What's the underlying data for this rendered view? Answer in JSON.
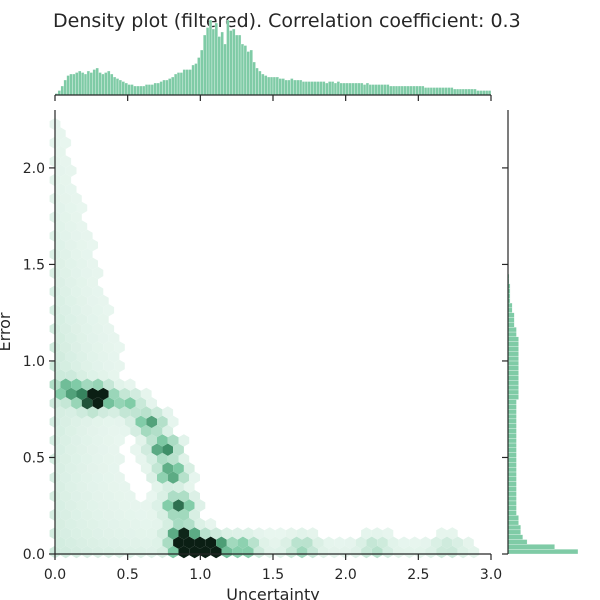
{
  "chart_data": {
    "type": "heatmap",
    "subtype": "hexbin-jointplot",
    "title": "Density plot (filtered). Correlation coefficient: 0.3",
    "xlabel": "Uncertainty",
    "ylabel": "Error",
    "xlim": [
      0,
      3.0
    ],
    "ylim": [
      0,
      2.3
    ],
    "x_ticks": [
      "0.0",
      "0.5",
      "1.0",
      "1.5",
      "2.0",
      "2.5",
      "3.0"
    ],
    "y_ticks": [
      "0.0",
      "0.5",
      "1.0",
      "1.5",
      "2.0"
    ],
    "correlation_coefficient": 0.3,
    "colors": {
      "marginal": "#7fcba6",
      "marginal_edge": "#5fb890",
      "dense": "#0b1f14",
      "light": "#e6f4ee"
    },
    "marginal_x": {
      "bin_width": 0.02,
      "start": 0.0,
      "counts": [
        1,
        3,
        6,
        10,
        13,
        14,
        14,
        15,
        16,
        15,
        14,
        16,
        15,
        17,
        18,
        15,
        14,
        15,
        16,
        14,
        12,
        11,
        10,
        9,
        8,
        7,
        7,
        6,
        6,
        6,
        6,
        7,
        7,
        7,
        8,
        8,
        9,
        10,
        10,
        11,
        12,
        14,
        15,
        15,
        17,
        17,
        17,
        20,
        21,
        25,
        30,
        40,
        45,
        50,
        44,
        48,
        39,
        42,
        34,
        50,
        43,
        44,
        40,
        40,
        34,
        33,
        29,
        30,
        22,
        18,
        16,
        14,
        13,
        12,
        12,
        12,
        12,
        11,
        11,
        10,
        10,
        11,
        10,
        10,
        10,
        9,
        9,
        9,
        9,
        9,
        9,
        9,
        9,
        8,
        9,
        9,
        8,
        9,
        8,
        8,
        8,
        8,
        8,
        8,
        8,
        8,
        7,
        8,
        7,
        7,
        7,
        7,
        7,
        7,
        7,
        6,
        6,
        6,
        6,
        6,
        6,
        6,
        6,
        6,
        6,
        6,
        6,
        5,
        5,
        5,
        5,
        5,
        5,
        5,
        5,
        5,
        5,
        4,
        4,
        4,
        4,
        4,
        4,
        4,
        4,
        3,
        3,
        3,
        3,
        3
      ]
    },
    "marginal_y": {
      "bin_width": 0.025,
      "start": 0.0,
      "counts": [
        33,
        22,
        9,
        7,
        6,
        6,
        5,
        5,
        4,
        4,
        4,
        4,
        4,
        4,
        4,
        4,
        4,
        4,
        4,
        4,
        4,
        4,
        4,
        4,
        4,
        4,
        4,
        4,
        4,
        4,
        4,
        4,
        5,
        5,
        5,
        5,
        5,
        5,
        5,
        5,
        5,
        5,
        5,
        5,
        5,
        4,
        4,
        3,
        3,
        3,
        2,
        2,
        1,
        1,
        1,
        1,
        0.5,
        0.5
      ]
    },
    "hexbin_density_description_points": [
      {
        "x": 0.1,
        "y": 0.85,
        "w": 0.55
      },
      {
        "x": 0.25,
        "y": 0.8,
        "w": 0.7
      },
      {
        "x": 0.3,
        "y": 0.82,
        "w": 0.9
      },
      {
        "x": 0.5,
        "y": 0.78,
        "w": 0.4
      },
      {
        "x": 0.65,
        "y": 0.68,
        "w": 0.6
      },
      {
        "x": 0.75,
        "y": 0.55,
        "w": 0.75
      },
      {
        "x": 0.8,
        "y": 0.42,
        "w": 0.7
      },
      {
        "x": 0.85,
        "y": 0.25,
        "w": 0.75
      },
      {
        "x": 0.88,
        "y": 0.1,
        "w": 0.85
      },
      {
        "x": 0.9,
        "y": 0.03,
        "w": 1.0
      },
      {
        "x": 1.0,
        "y": 0.03,
        "w": 1.0
      },
      {
        "x": 1.1,
        "y": 0.03,
        "w": 0.9
      },
      {
        "x": 1.3,
        "y": 0.03,
        "w": 0.45
      },
      {
        "x": 1.7,
        "y": 0.03,
        "w": 0.3
      },
      {
        "x": 2.2,
        "y": 0.03,
        "w": 0.22
      },
      {
        "x": 2.7,
        "y": 0.03,
        "w": 0.15
      }
    ]
  }
}
